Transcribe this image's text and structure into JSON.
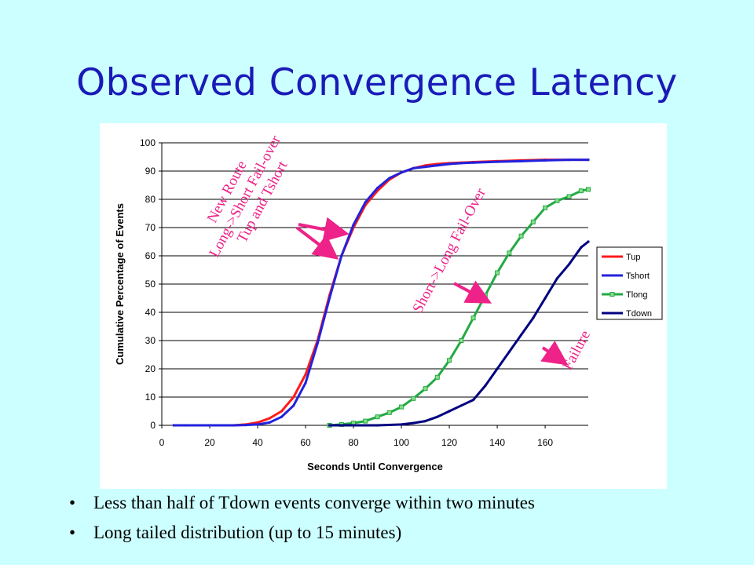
{
  "slide": {
    "title": "Observed Convergence Latency",
    "bullets": [
      "Less than half of Tdown events converge within two minutes",
      "Long tailed distribution (up to 15 minutes)"
    ],
    "bullet_glyph": "•"
  },
  "chart_data": {
    "type": "line",
    "xlabel": "Seconds Until Convergence",
    "ylabel": "Cumulative Percentage of Events",
    "xlim": [
      0,
      178
    ],
    "ylim": [
      0,
      100
    ],
    "xticks": [
      0,
      20,
      40,
      60,
      80,
      100,
      120,
      140,
      160
    ],
    "yticks": [
      0,
      10,
      20,
      30,
      40,
      50,
      60,
      70,
      80,
      90,
      100
    ],
    "grid": "horizontal",
    "legend_position": "right",
    "series": [
      {
        "name": "Tup",
        "color": "#ff1a1a",
        "x": [
          5,
          10,
          20,
          30,
          35,
          40,
          45,
          50,
          55,
          60,
          65,
          70,
          75,
          80,
          85,
          90,
          95,
          100,
          105,
          110,
          115,
          120,
          125,
          130,
          140,
          150,
          160,
          170,
          178
        ],
        "y": [
          0,
          0,
          0,
          0,
          0.3,
          1,
          2.5,
          5,
          10,
          18,
          30,
          46,
          60,
          70,
          78,
          83,
          87,
          89.5,
          91,
          92,
          92.5,
          92.8,
          93,
          93.2,
          93.5,
          93.8,
          94,
          94,
          94
        ]
      },
      {
        "name": "Tshort",
        "color": "#2222dd",
        "x": [
          5,
          10,
          20,
          30,
          35,
          40,
          45,
          50,
          55,
          60,
          65,
          70,
          75,
          80,
          85,
          90,
          95,
          100,
          105,
          110,
          115,
          120,
          125,
          130,
          140,
          150,
          160,
          170,
          178
        ],
        "y": [
          0,
          0,
          0,
          0,
          0.1,
          0.3,
          1,
          3,
          7,
          15,
          29,
          45,
          60,
          71,
          79,
          84,
          87.5,
          89.5,
          91,
          91.5,
          92,
          92.5,
          92.8,
          93,
          93.3,
          93.5,
          93.8,
          94,
          94
        ]
      },
      {
        "name": "Tlong",
        "color": "#22aa44",
        "x": [
          70,
          75,
          80,
          85,
          90,
          95,
          100,
          105,
          110,
          115,
          120,
          125,
          130,
          135,
          140,
          145,
          150,
          155,
          160,
          165,
          170,
          175,
          178
        ],
        "y": [
          0,
          0.3,
          0.8,
          1.5,
          3,
          4.5,
          6.5,
          9.5,
          13,
          17,
          23,
          30,
          38,
          46,
          54,
          61,
          67,
          72,
          77,
          79.5,
          81,
          83,
          83.5
        ]
      },
      {
        "name": "Tdown",
        "color": "#000080",
        "x": [
          70,
          80,
          90,
          100,
          105,
          110,
          115,
          120,
          125,
          130,
          135,
          140,
          145,
          150,
          155,
          160,
          165,
          170,
          175,
          178
        ],
        "y": [
          0,
          0,
          0,
          0.3,
          0.8,
          1.5,
          3,
          5,
          7,
          9,
          14,
          20,
          26,
          32,
          38,
          45,
          52,
          57,
          63,
          65
        ]
      }
    ],
    "annotations": [
      {
        "lines": [
          "New Route",
          "Long->Short Fail-over",
          "Tup and Tshort"
        ]
      },
      {
        "lines": [
          "Short->Long Fail-Over"
        ]
      },
      {
        "lines": [
          "Failure"
        ]
      }
    ]
  }
}
